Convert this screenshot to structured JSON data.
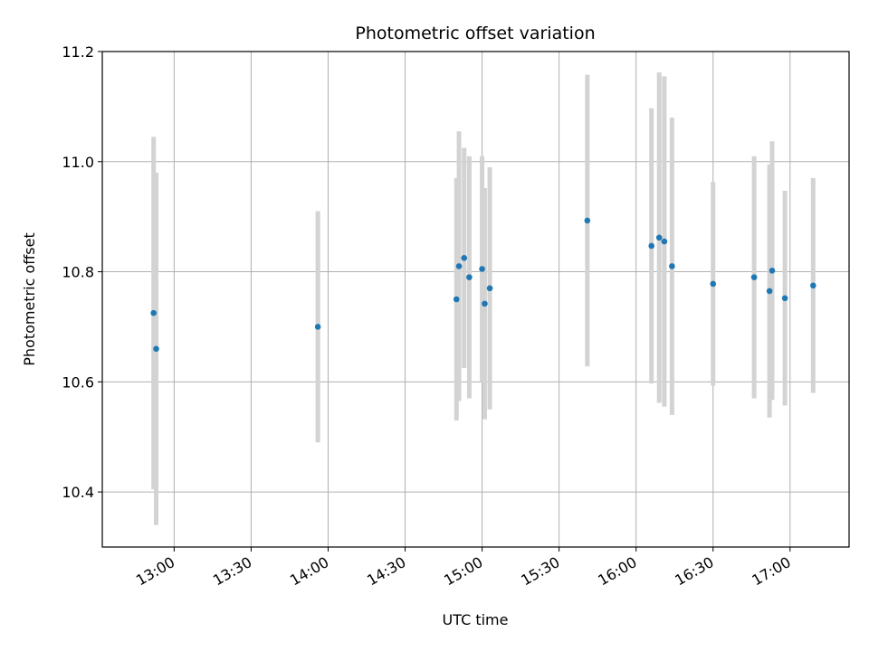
{
  "chart_data": {
    "type": "scatter",
    "title": "Photometric offset variation",
    "xlabel": "UTC time",
    "ylabel": "Photometric offset",
    "xlim": [
      "12:32",
      "17:23"
    ],
    "ylim": [
      10.3,
      11.2
    ],
    "x_ticks": [
      "13:00",
      "13:30",
      "14:00",
      "14:30",
      "15:00",
      "15:30",
      "16:00",
      "16:30",
      "17:00"
    ],
    "y_ticks": [
      10.4,
      10.6,
      10.8,
      11.0,
      11.2
    ],
    "grid": true,
    "marker_color": "#1f77b4",
    "errorbar_color": "#d3d3d3",
    "points": [
      {
        "x": "12:52",
        "y": 10.725,
        "err": 0.32
      },
      {
        "x": "12:53",
        "y": 10.66,
        "err": 0.32
      },
      {
        "x": "13:56",
        "y": 10.7,
        "err": 0.21
      },
      {
        "x": "14:50",
        "y": 10.75,
        "err": 0.22
      },
      {
        "x": "14:51",
        "y": 10.81,
        "err": 0.245
      },
      {
        "x": "14:53",
        "y": 10.825,
        "err": 0.2
      },
      {
        "x": "14:55",
        "y": 10.79,
        "err": 0.22
      },
      {
        "x": "15:00",
        "y": 10.805,
        "err": 0.205
      },
      {
        "x": "15:01",
        "y": 10.742,
        "err": 0.21
      },
      {
        "x": "15:03",
        "y": 10.77,
        "err": 0.22
      },
      {
        "x": "15:41",
        "y": 10.893,
        "err": 0.265
      },
      {
        "x": "16:06",
        "y": 10.847,
        "err": 0.25
      },
      {
        "x": "16:09",
        "y": 10.862,
        "err": 0.3
      },
      {
        "x": "16:11",
        "y": 10.855,
        "err": 0.3
      },
      {
        "x": "16:14",
        "y": 10.81,
        "err": 0.27
      },
      {
        "x": "16:30",
        "y": 10.778,
        "err": 0.185
      },
      {
        "x": "16:46",
        "y": 10.79,
        "err": 0.22
      },
      {
        "x": "16:52",
        "y": 10.765,
        "err": 0.23
      },
      {
        "x": "16:53",
        "y": 10.802,
        "err": 0.235
      },
      {
        "x": "16:58",
        "y": 10.752,
        "err": 0.195
      },
      {
        "x": "17:09",
        "y": 10.775,
        "err": 0.195
      }
    ]
  }
}
